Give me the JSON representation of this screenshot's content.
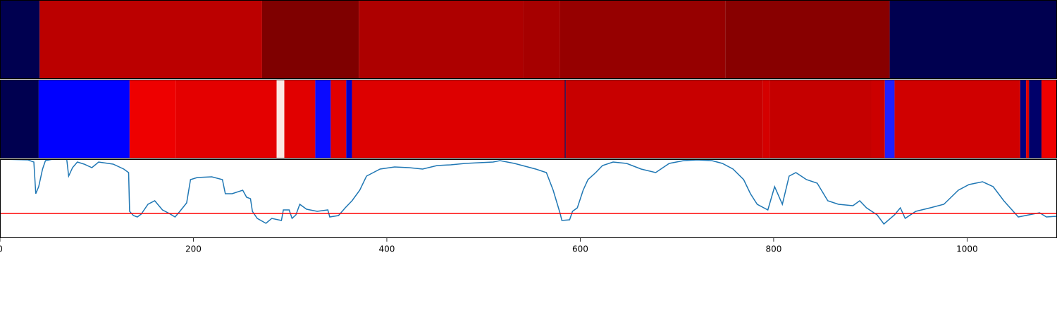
{
  "chart_data": [
    {
      "type": "segments",
      "xlim": [
        0,
        1093
      ],
      "segments": [
        {
          "start": 0,
          "end": 41,
          "color": "#000050"
        },
        {
          "start": 41,
          "end": 271,
          "color": "#bb0000"
        },
        {
          "start": 271,
          "end": 371,
          "color": "#7f0000"
        },
        {
          "start": 371,
          "end": 541,
          "color": "#ad0000"
        },
        {
          "start": 541,
          "end": 579,
          "color": "#a60000"
        },
        {
          "start": 579,
          "end": 750,
          "color": "#960000"
        },
        {
          "start": 750,
          "end": 920,
          "color": "#880000"
        },
        {
          "start": 920,
          "end": 1093,
          "color": "#000050"
        }
      ]
    },
    {
      "type": "segments",
      "xlim": [
        0,
        1093
      ],
      "segments": [
        {
          "start": 0,
          "end": 40,
          "color": "#000050"
        },
        {
          "start": 40,
          "end": 134,
          "color": "#0000ff"
        },
        {
          "start": 134,
          "end": 182,
          "color": "#ee0000"
        },
        {
          "start": 182,
          "end": 286,
          "color": "#e40000"
        },
        {
          "start": 286,
          "end": 294,
          "color": "#fbe8e4"
        },
        {
          "start": 294,
          "end": 326,
          "color": "#e10000"
        },
        {
          "start": 326,
          "end": 342,
          "color": "#0a0aff"
        },
        {
          "start": 342,
          "end": 358,
          "color": "#e20000"
        },
        {
          "start": 358,
          "end": 364,
          "color": "#0000cc"
        },
        {
          "start": 364,
          "end": 584,
          "color": "#dd0000"
        },
        {
          "start": 584,
          "end": 585,
          "color": "#000050"
        },
        {
          "start": 585,
          "end": 789,
          "color": "#c80000"
        },
        {
          "start": 789,
          "end": 796,
          "color": "#d40000"
        },
        {
          "start": 796,
          "end": 901,
          "color": "#c50000"
        },
        {
          "start": 901,
          "end": 915,
          "color": "#cc0000"
        },
        {
          "start": 915,
          "end": 925,
          "color": "#2020ff"
        },
        {
          "start": 925,
          "end": 1055,
          "color": "#d00000"
        },
        {
          "start": 1055,
          "end": 1061,
          "color": "#000080"
        },
        {
          "start": 1061,
          "end": 1064,
          "color": "#e00000"
        },
        {
          "start": 1064,
          "end": 1077,
          "color": "#00006a"
        },
        {
          "start": 1077,
          "end": 1093,
          "color": "#ee0000"
        }
      ]
    },
    {
      "type": "line",
      "xlim": [
        0,
        1093
      ],
      "ylim": [
        0,
        112
      ],
      "xticks": [
        0,
        200,
        400,
        600,
        800,
        1000
      ],
      "color": "#1f77b4",
      "hline": 35,
      "hline_color": "#ff0000",
      "x": [
        0,
        29,
        35,
        37,
        40,
        44,
        47,
        55,
        69,
        71,
        75,
        80,
        87,
        95,
        102,
        117,
        128,
        133,
        134,
        138,
        142,
        146,
        153,
        160,
        168,
        175,
        181,
        186,
        193,
        197,
        204,
        219,
        230,
        233,
        240,
        251,
        255,
        259,
        261,
        266,
        275,
        281,
        291,
        293,
        299,
        302,
        306,
        310,
        317,
        328,
        339,
        341,
        350,
        357,
        364,
        372,
        379,
        393,
        408,
        423,
        437,
        452,
        466,
        481,
        495,
        510,
        517,
        532,
        554,
        565,
        572,
        579,
        581,
        589,
        592,
        597,
        603,
        608,
        616,
        623,
        634,
        648,
        663,
        678,
        692,
        707,
        721,
        736,
        747,
        758,
        769,
        776,
        783,
        794,
        801,
        809,
        816,
        823,
        834,
        845,
        856,
        867,
        882,
        889,
        896,
        907,
        914,
        925,
        931,
        936,
        947,
        962,
        976,
        991,
        1002,
        1016,
        1027,
        1038,
        1053,
        1064,
        1075,
        1082,
        1093
      ],
      "values": [
        112,
        111,
        108,
        63,
        73,
        98,
        110,
        112,
        112,
        88,
        100,
        108,
        105,
        100,
        108,
        105,
        98,
        93,
        38,
        32,
        30,
        34,
        48,
        53,
        40,
        35,
        30,
        38,
        50,
        83,
        86,
        87,
        83,
        63,
        63,
        68,
        58,
        56,
        38,
        28,
        21,
        28,
        25,
        40,
        40,
        28,
        33,
        48,
        41,
        38,
        40,
        30,
        32,
        43,
        53,
        68,
        88,
        98,
        101,
        100,
        98,
        103,
        104,
        106,
        107,
        108,
        110,
        106,
        98,
        93,
        68,
        36,
        25,
        26,
        38,
        43,
        68,
        83,
        93,
        103,
        108,
        106,
        98,
        93,
        106,
        110,
        111,
        110,
        106,
        98,
        83,
        63,
        48,
        40,
        73,
        48,
        88,
        93,
        83,
        78,
        53,
        48,
        46,
        53,
        43,
        33,
        20,
        33,
        43,
        28,
        38,
        43,
        48,
        68,
        76,
        80,
        73,
        53,
        30,
        33,
        36,
        30,
        31
      ]
    }
  ]
}
